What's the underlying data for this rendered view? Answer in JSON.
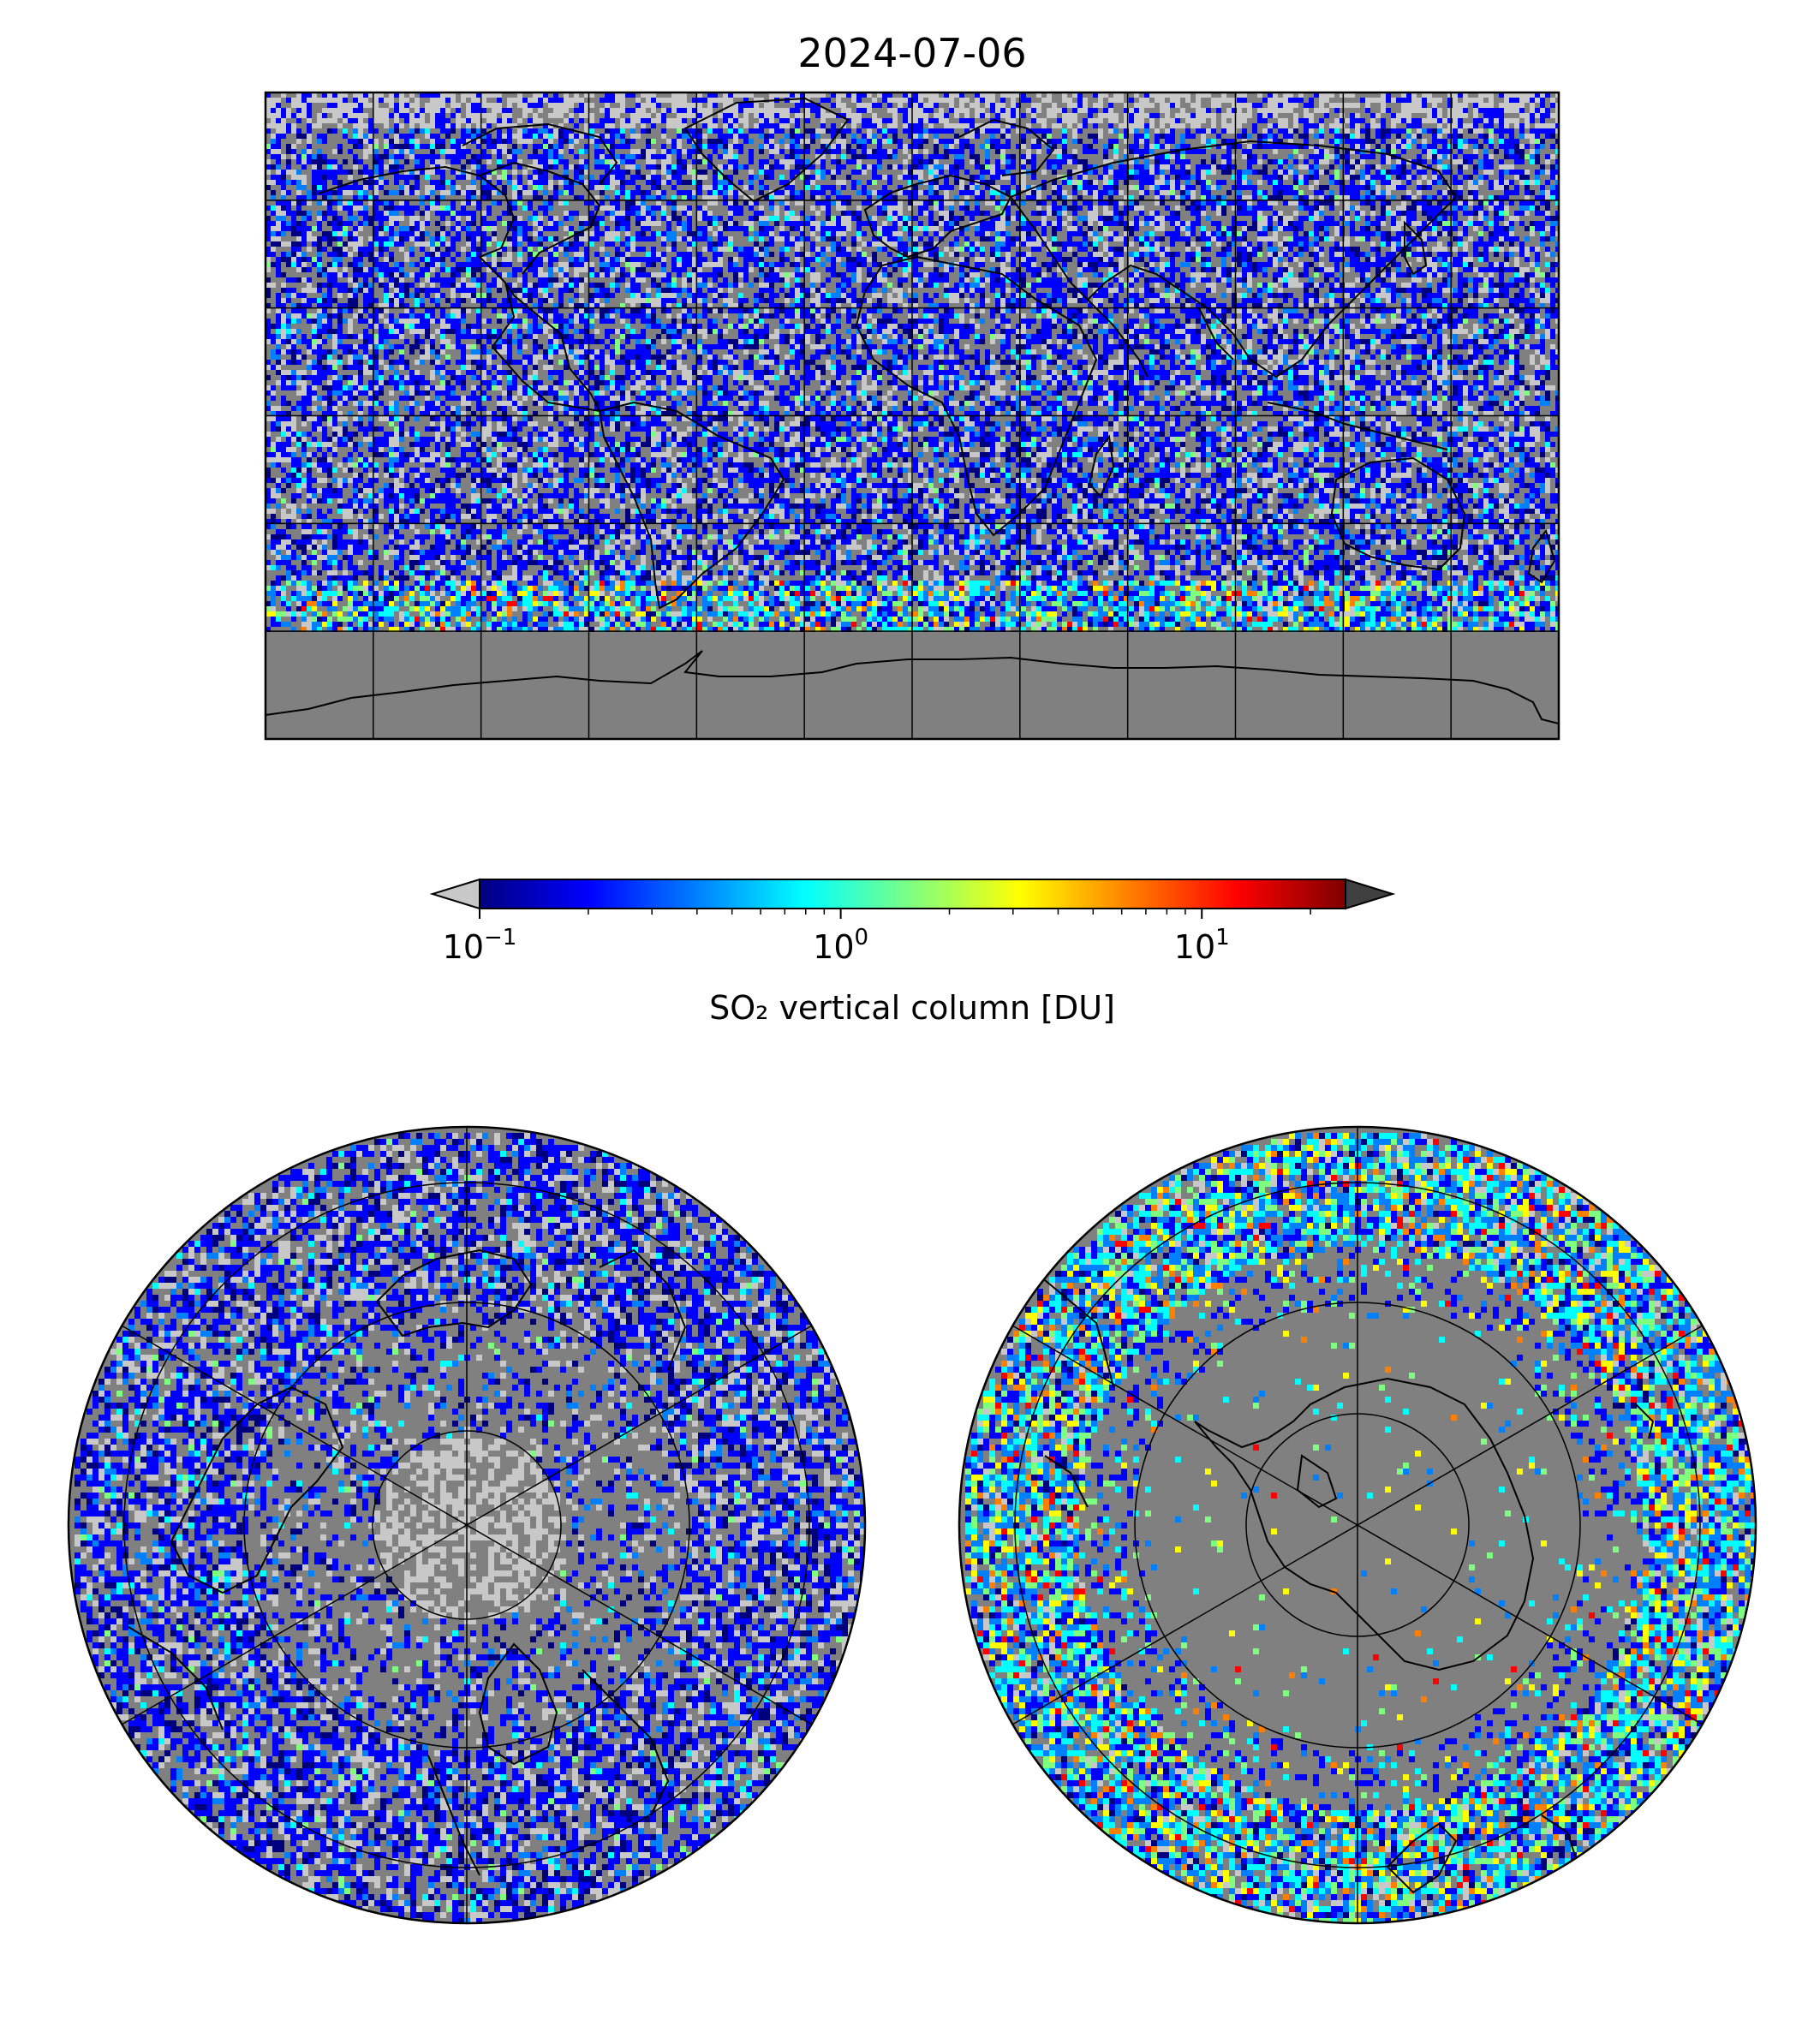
{
  "title": "2024-07-06",
  "colorbar": {
    "label": "SO₂ vertical column [DU]",
    "scale": "log",
    "range_du": [
      0.1,
      25
    ],
    "extend": "both",
    "under_color": "#c8c8c8",
    "over_color": "#404040",
    "ticks": [
      {
        "value": 0.1,
        "base": "10",
        "exp": "−1"
      },
      {
        "value": 1,
        "base": "10",
        "exp": "0"
      },
      {
        "value": 10,
        "base": "10",
        "exp": "1"
      }
    ],
    "colormap": "jet",
    "colormap_stops": [
      "#00007f",
      "#0000ff",
      "#007fff",
      "#00ffff",
      "#7fff7f",
      "#ffff00",
      "#ff7f00",
      "#ff0000",
      "#7f0000"
    ]
  },
  "maps": {
    "global": {
      "projection": "PlateCarree",
      "gridline_spacing_deg": 30,
      "background_color": "#808080",
      "coastline_color": "#000000"
    },
    "north_polar": {
      "projection": "NorthPolarStereo",
      "background_color": "#808080"
    },
    "south_polar": {
      "projection": "SouthPolarStereo",
      "background_color": "#808080"
    }
  }
}
